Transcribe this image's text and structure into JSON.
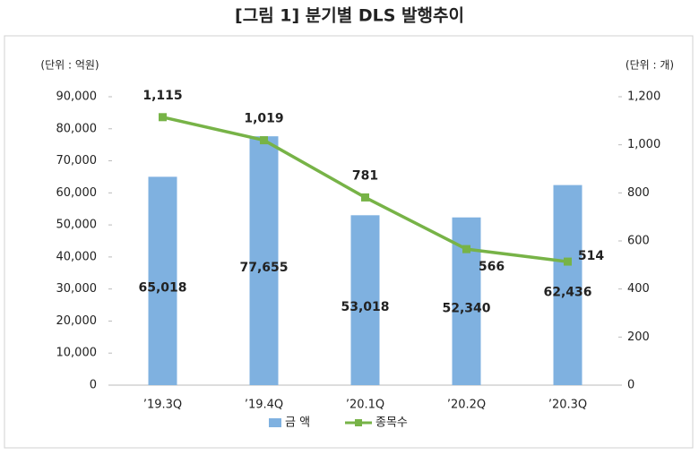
{
  "chart_data": {
    "type": "combo",
    "title": "[그림 1] 분기별 DLS 발행추이",
    "y_unit": "(단위 : 억원)",
    "y2_unit": "(단위 : 개)",
    "categories": [
      "’19.3Q",
      "’19.4Q",
      "’20.1Q",
      "’20.2Q",
      "’20.3Q"
    ],
    "series": [
      {
        "name": "금 액",
        "type": "bar",
        "color": "#7fb1e0",
        "values": [
          65018,
          77655,
          53018,
          52340,
          62436
        ],
        "value_labels": [
          "65,018",
          "77,655",
          "53,018",
          "52,340",
          "62,436"
        ]
      },
      {
        "name": "종목수",
        "type": "line",
        "axis": "y2",
        "color": "#77b347",
        "values": [
          1115,
          1019,
          781,
          566,
          514
        ],
        "value_labels": [
          "1,115",
          "1,019",
          "781",
          "566",
          "514"
        ]
      }
    ],
    "ylim": [
      0,
      90000
    ],
    "yticks": [
      0,
      {
        "value": 10000,
        "label": "10,000"
      },
      {
        "value": 20000,
        "label": "20,000"
      },
      {
        "value": 30000,
        "label": "30,000"
      },
      {
        "value": 40000,
        "label": "40,000"
      },
      {
        "value": 50000,
        "label": "50,000"
      },
      {
        "value": 60000,
        "label": "60,000"
      },
      {
        "value": 70000,
        "label": "70,000"
      },
      {
        "value": 80000,
        "label": "80,000"
      },
      {
        "value": 90000,
        "label": "90,000"
      }
    ],
    "y2lim": [
      0,
      1200
    ],
    "y2ticks": [
      0,
      200,
      400,
      600,
      800,
      {
        "value": 1000,
        "label": "1,000"
      },
      {
        "value": 1200,
        "label": "1,200"
      }
    ],
    "legend": "bottom"
  }
}
